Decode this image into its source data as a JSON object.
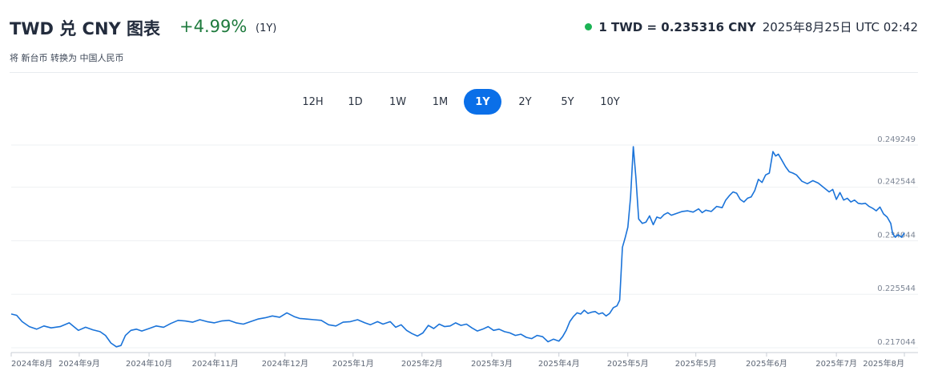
{
  "header": {
    "title": "TWD 兑 CNY 图表",
    "change": "+4.99%",
    "period": "(1Y)",
    "rate": "1 TWD = 0.235316 CNY",
    "timestamp": "2025年8月25日 UTC 02:42",
    "subtitle": "将 新台币 转换为 中国人民币"
  },
  "tabs": [
    {
      "label": "12H",
      "active": false
    },
    {
      "label": "1D",
      "active": false
    },
    {
      "label": "1W",
      "active": false
    },
    {
      "label": "1M",
      "active": false
    },
    {
      "label": "1Y",
      "active": true
    },
    {
      "label": "2Y",
      "active": false
    },
    {
      "label": "5Y",
      "active": false
    },
    {
      "label": "10Y",
      "active": false
    }
  ],
  "colors": {
    "line": "#1a73d9",
    "positive": "#1e7a3d",
    "active_tab": "#0a6fe8",
    "live_dot": "#1bb354"
  },
  "chart_data": {
    "type": "line",
    "title": "",
    "xlabel": "",
    "ylabel": "",
    "ylim": [
      0.217044,
      0.249249
    ],
    "y_ticks": [
      "0.249249",
      "0.242544",
      "0.234044",
      "0.225544",
      "0.217044"
    ],
    "x_ticks": [
      "2024年8月",
      "2024年9月",
      "2024年10月",
      "2024年11月",
      "2024年12月",
      "2025年1月",
      "2025年2月",
      "2025年3月",
      "2025年4月",
      "2025年5月",
      "2025年5月",
      "2025年6月",
      "2025年7月",
      "2025年8月"
    ],
    "x_tick_pos": [
      0.0,
      0.075,
      0.152,
      0.225,
      0.302,
      0.377,
      0.453,
      0.53,
      0.604,
      0.68,
      0.755,
      0.833,
      0.91,
      0.985
    ],
    "grid": true,
    "series": [
      {
        "points": [
          [
            0.0,
            0.2224
          ],
          [
            0.006,
            0.2222
          ],
          [
            0.012,
            0.2212
          ],
          [
            0.02,
            0.2204
          ],
          [
            0.028,
            0.22
          ],
          [
            0.036,
            0.2205
          ],
          [
            0.044,
            0.2202
          ],
          [
            0.054,
            0.2204
          ],
          [
            0.064,
            0.221
          ],
          [
            0.074,
            0.2198
          ],
          [
            0.082,
            0.2203
          ],
          [
            0.09,
            0.2199
          ],
          [
            0.098,
            0.2196
          ],
          [
            0.104,
            0.219
          ],
          [
            0.11,
            0.2178
          ],
          [
            0.116,
            0.2172
          ],
          [
            0.121,
            0.2174
          ],
          [
            0.126,
            0.219
          ],
          [
            0.132,
            0.2198
          ],
          [
            0.138,
            0.22
          ],
          [
            0.144,
            0.2197
          ],
          [
            0.152,
            0.2201
          ],
          [
            0.16,
            0.2205
          ],
          [
            0.168,
            0.2203
          ],
          [
            0.176,
            0.2209
          ],
          [
            0.184,
            0.2214
          ],
          [
            0.192,
            0.2213
          ],
          [
            0.2,
            0.2211
          ],
          [
            0.208,
            0.2215
          ],
          [
            0.216,
            0.2212
          ],
          [
            0.224,
            0.221
          ],
          [
            0.232,
            0.2213
          ],
          [
            0.24,
            0.2214
          ],
          [
            0.248,
            0.221
          ],
          [
            0.256,
            0.2208
          ],
          [
            0.264,
            0.2212
          ],
          [
            0.272,
            0.2216
          ],
          [
            0.28,
            0.2218
          ],
          [
            0.288,
            0.2221
          ],
          [
            0.296,
            0.2219
          ],
          [
            0.304,
            0.2226
          ],
          [
            0.312,
            0.222
          ],
          [
            0.318,
            0.2217
          ],
          [
            0.326,
            0.2216
          ],
          [
            0.334,
            0.2215
          ],
          [
            0.342,
            0.2214
          ],
          [
            0.35,
            0.2207
          ],
          [
            0.358,
            0.2205
          ],
          [
            0.366,
            0.2211
          ],
          [
            0.374,
            0.2212
          ],
          [
            0.382,
            0.2215
          ],
          [
            0.39,
            0.221
          ],
          [
            0.396,
            0.2207
          ],
          [
            0.404,
            0.2212
          ],
          [
            0.41,
            0.2208
          ],
          [
            0.418,
            0.2212
          ],
          [
            0.424,
            0.2203
          ],
          [
            0.43,
            0.2207
          ],
          [
            0.436,
            0.2198
          ],
          [
            0.442,
            0.2193
          ],
          [
            0.448,
            0.2189
          ],
          [
            0.454,
            0.2194
          ],
          [
            0.46,
            0.2206
          ],
          [
            0.466,
            0.2201
          ],
          [
            0.472,
            0.2208
          ],
          [
            0.478,
            0.2204
          ],
          [
            0.484,
            0.2205
          ],
          [
            0.49,
            0.221
          ],
          [
            0.496,
            0.2206
          ],
          [
            0.502,
            0.2208
          ],
          [
            0.508,
            0.2202
          ],
          [
            0.514,
            0.2197
          ],
          [
            0.52,
            0.22
          ],
          [
            0.526,
            0.2204
          ],
          [
            0.532,
            0.2198
          ],
          [
            0.538,
            0.22
          ],
          [
            0.544,
            0.2196
          ],
          [
            0.55,
            0.2194
          ],
          [
            0.556,
            0.219
          ],
          [
            0.562,
            0.2192
          ],
          [
            0.568,
            0.2187
          ],
          [
            0.574,
            0.2185
          ],
          [
            0.58,
            0.219
          ],
          [
            0.586,
            0.2188
          ],
          [
            0.592,
            0.218
          ],
          [
            0.598,
            0.2184
          ],
          [
            0.604,
            0.2181
          ],
          [
            0.608,
            0.2188
          ],
          [
            0.612,
            0.2198
          ],
          [
            0.616,
            0.2212
          ],
          [
            0.62,
            0.222
          ],
          [
            0.624,
            0.2226
          ],
          [
            0.628,
            0.2224
          ],
          [
            0.632,
            0.223
          ],
          [
            0.636,
            0.2225
          ],
          [
            0.64,
            0.2227
          ],
          [
            0.644,
            0.2228
          ],
          [
            0.648,
            0.2224
          ],
          [
            0.652,
            0.2226
          ],
          [
            0.656,
            0.2221
          ],
          [
            0.66,
            0.2225
          ],
          [
            0.664,
            0.2234
          ],
          [
            0.668,
            0.2237
          ],
          [
            0.671,
            0.2246
          ],
          [
            0.674,
            0.233
          ],
          [
            0.677,
            0.2345
          ],
          [
            0.68,
            0.2362
          ],
          [
            0.683,
            0.241
          ],
          [
            0.686,
            0.249
          ],
          [
            0.689,
            0.244
          ],
          [
            0.692,
            0.2375
          ],
          [
            0.696,
            0.2368
          ],
          [
            0.7,
            0.237
          ],
          [
            0.704,
            0.238
          ],
          [
            0.708,
            0.2366
          ],
          [
            0.712,
            0.2378
          ],
          [
            0.716,
            0.2376
          ],
          [
            0.72,
            0.2382
          ],
          [
            0.724,
            0.2385
          ],
          [
            0.728,
            0.2381
          ],
          [
            0.734,
            0.2384
          ],
          [
            0.74,
            0.2387
          ],
          [
            0.746,
            0.2388
          ],
          [
            0.752,
            0.2386
          ],
          [
            0.758,
            0.2391
          ],
          [
            0.762,
            0.2385
          ],
          [
            0.766,
            0.2389
          ],
          [
            0.772,
            0.2387
          ],
          [
            0.778,
            0.2395
          ],
          [
            0.784,
            0.2393
          ],
          [
            0.788,
            0.2405
          ],
          [
            0.792,
            0.2412
          ],
          [
            0.796,
            0.2418
          ],
          [
            0.8,
            0.2416
          ],
          [
            0.804,
            0.2406
          ],
          [
            0.808,
            0.2402
          ],
          [
            0.812,
            0.2408
          ],
          [
            0.816,
            0.241
          ],
          [
            0.82,
            0.242
          ],
          [
            0.824,
            0.2438
          ],
          [
            0.828,
            0.2433
          ],
          [
            0.832,
            0.2445
          ],
          [
            0.836,
            0.2448
          ],
          [
            0.84,
            0.2482
          ],
          [
            0.843,
            0.2475
          ],
          [
            0.846,
            0.2478
          ],
          [
            0.85,
            0.2468
          ],
          [
            0.854,
            0.2458
          ],
          [
            0.858,
            0.245
          ],
          [
            0.862,
            0.2448
          ],
          [
            0.866,
            0.2445
          ],
          [
            0.872,
            0.2435
          ],
          [
            0.878,
            0.2431
          ],
          [
            0.884,
            0.2436
          ],
          [
            0.89,
            0.2432
          ],
          [
            0.896,
            0.2425
          ],
          [
            0.902,
            0.2418
          ],
          [
            0.906,
            0.2422
          ],
          [
            0.91,
            0.2406
          ],
          [
            0.914,
            0.2417
          ],
          [
            0.918,
            0.2405
          ],
          [
            0.922,
            0.2408
          ],
          [
            0.926,
            0.2402
          ],
          [
            0.93,
            0.2405
          ],
          [
            0.934,
            0.24
          ],
          [
            0.938,
            0.2399
          ],
          [
            0.942,
            0.24
          ],
          [
            0.946,
            0.2395
          ],
          [
            0.95,
            0.2392
          ],
          [
            0.954,
            0.2388
          ],
          [
            0.958,
            0.2394
          ],
          [
            0.962,
            0.2383
          ],
          [
            0.966,
            0.2378
          ],
          [
            0.97,
            0.2368
          ],
          [
            0.972,
            0.2352
          ],
          [
            0.975,
            0.2346
          ],
          [
            0.978,
            0.235
          ],
          [
            0.982,
            0.2346
          ],
          [
            0.985,
            0.2353
          ]
        ]
      }
    ]
  }
}
